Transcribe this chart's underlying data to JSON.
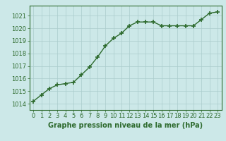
{
  "x": [
    0,
    1,
    2,
    3,
    4,
    5,
    6,
    7,
    8,
    9,
    10,
    11,
    12,
    13,
    14,
    15,
    16,
    17,
    18,
    19,
    20,
    21,
    22,
    23
  ],
  "y": [
    1014.2,
    1014.7,
    1015.2,
    1015.5,
    1015.6,
    1015.7,
    1016.3,
    1016.9,
    1017.7,
    1018.6,
    1019.2,
    1019.6,
    1020.2,
    1020.5,
    1020.5,
    1020.5,
    1020.2,
    1020.2,
    1020.2,
    1020.2,
    1020.2,
    1020.7,
    1021.2,
    1021.3
  ],
  "ylim": [
    1013.5,
    1021.8
  ],
  "xlim": [
    -0.5,
    23.5
  ],
  "yticks": [
    1014,
    1015,
    1016,
    1017,
    1018,
    1019,
    1020,
    1021
  ],
  "xticks": [
    0,
    1,
    2,
    3,
    4,
    5,
    6,
    7,
    8,
    9,
    10,
    11,
    12,
    13,
    14,
    15,
    16,
    17,
    18,
    19,
    20,
    21,
    22,
    23
  ],
  "line_color": "#2d6a2d",
  "marker_color": "#2d6a2d",
  "bg_color": "#cce8e8",
  "grid_color": "#aacccc",
  "xlabel": "Graphe pression niveau de la mer (hPa)",
  "xlabel_fontsize": 7.0,
  "tick_fontsize": 6.0,
  "line_width": 1.0,
  "marker_size": 4
}
